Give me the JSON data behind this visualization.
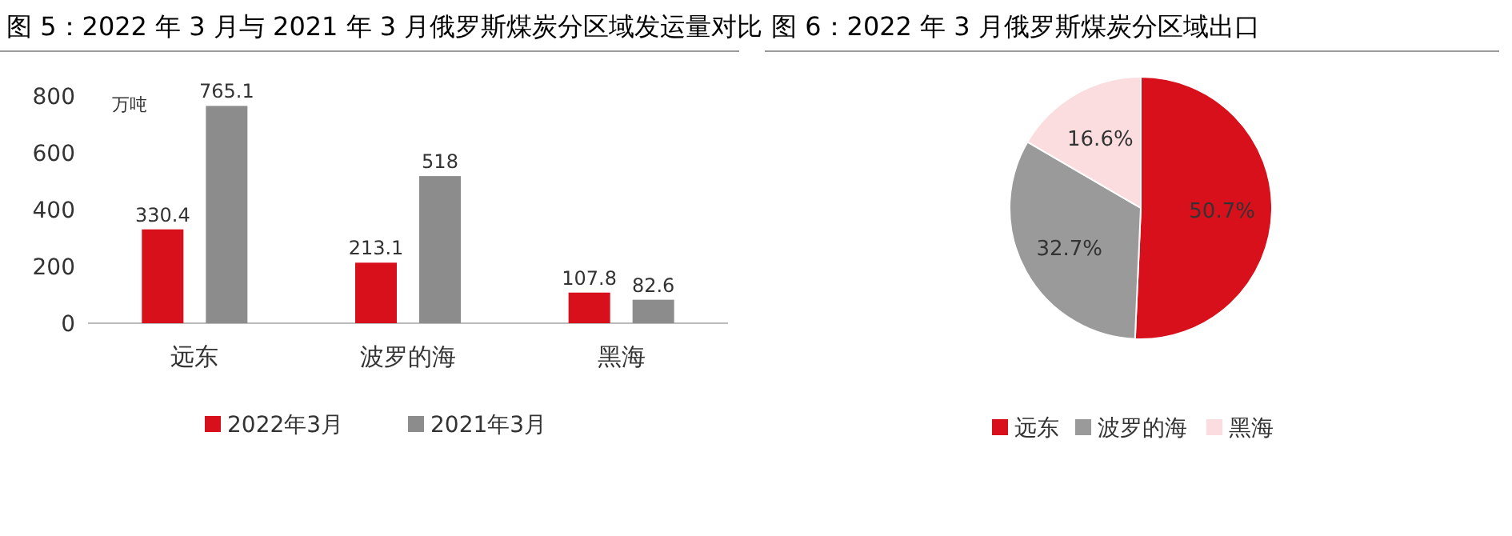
{
  "chart_data": [
    {
      "type": "bar",
      "title": "图 5：2022 年 3 月与 2021 年 3 月俄罗斯煤炭分区域发运量对比",
      "ylabel": "万吨",
      "categories": [
        "远东",
        "波罗的海",
        "黑海"
      ],
      "series": [
        {
          "name": "2022年3月",
          "color": "#d7101c",
          "values": [
            330.4,
            213.1,
            107.8
          ]
        },
        {
          "name": "2021年3月",
          "color": "#8c8c8c",
          "values": [
            765.1,
            518,
            82.6
          ]
        }
      ],
      "ylim": [
        0,
        800
      ],
      "yticks": [
        0,
        200,
        400,
        600,
        800
      ],
      "data_labels": true,
      "legend": "bottom",
      "grid": false
    },
    {
      "type": "pie",
      "title": "图 6：2022 年 3 月俄罗斯煤炭分区域出口",
      "categories": [
        "远东",
        "波罗的海",
        "黑海"
      ],
      "values": [
        50.7,
        32.7,
        16.6
      ],
      "colors": [
        "#d7101c",
        "#9a9a9a",
        "#fbdde0"
      ],
      "value_labels": [
        "50.7%",
        "32.7%",
        "16.6%"
      ],
      "legend": "bottom"
    }
  ]
}
